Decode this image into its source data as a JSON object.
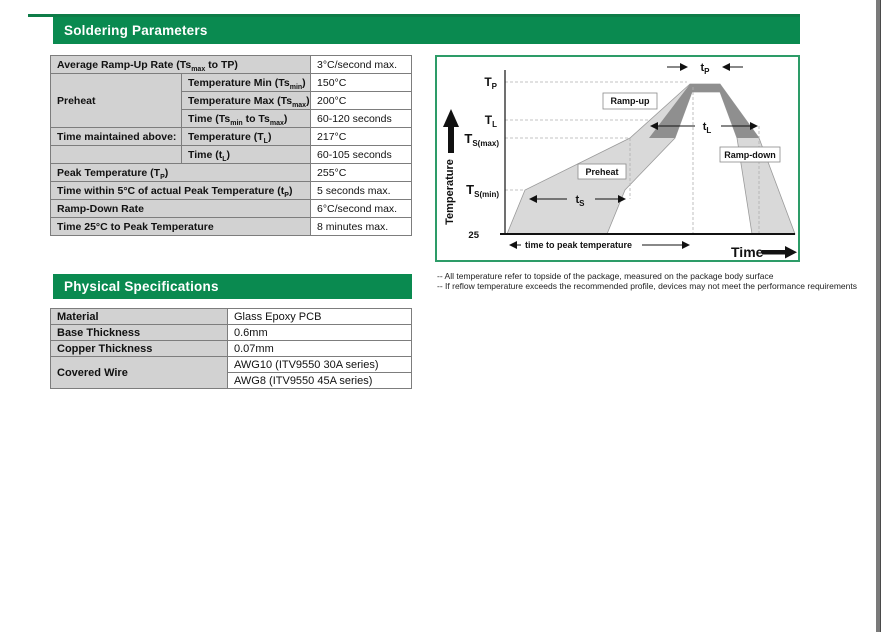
{
  "sections": {
    "soldering": {
      "title": "Soldering Parameters"
    },
    "physical": {
      "title": "Physical Specifications"
    }
  },
  "soldering_table": {
    "rows": [
      [
        {
          "parts": [
            [
              "Average Ramp-Up Rate (Ts",
              0
            ],
            [
              "max",
              1
            ],
            [
              " to TP)",
              0
            ]
          ],
          "colspan": 2
        },
        {
          "text": "3°C/second max.",
          "v": true
        }
      ],
      [
        {
          "text": "Preheat",
          "rowspan": 3
        },
        {
          "parts": [
            [
              "Temperature Min (Ts",
              0
            ],
            [
              "min",
              1
            ],
            [
              ")",
              0
            ]
          ]
        },
        {
          "text": "150°C",
          "v": true
        }
      ],
      [
        {
          "parts": [
            [
              "Temperature Max (Ts",
              0
            ],
            [
              "max",
              1
            ],
            [
              ")",
              0
            ]
          ]
        },
        {
          "text": "200°C",
          "v": true
        }
      ],
      [
        {
          "parts": [
            [
              "Time (Ts",
              0
            ],
            [
              "min",
              1
            ],
            [
              " to Ts",
              0
            ],
            [
              "max",
              1
            ],
            [
              ")",
              0
            ]
          ]
        },
        {
          "text": "60-120 seconds",
          "v": true
        }
      ],
      [
        {
          "text": "Time maintained above:"
        },
        {
          "parts": [
            [
              "Temperature (T",
              0
            ],
            [
              "L",
              1
            ],
            [
              ")",
              0
            ]
          ]
        },
        {
          "text": "217°C",
          "v": true
        }
      ],
      [
        {
          "text": ""
        },
        {
          "parts": [
            [
              "Time (t",
              0
            ],
            [
              "L",
              1
            ],
            [
              ")",
              0
            ]
          ]
        },
        {
          "text": "60-105 seconds",
          "v": true
        }
      ],
      [
        {
          "parts": [
            [
              "Peak Temperature (T",
              0
            ],
            [
              "P",
              1
            ],
            [
              ")",
              0
            ]
          ],
          "colspan": 2
        },
        {
          "text": "255°C",
          "v": true
        }
      ],
      [
        {
          "parts": [
            [
              "Time within 5°C of actual Peak Temperature (t",
              0
            ],
            [
              "P",
              1
            ],
            [
              ")",
              0
            ]
          ],
          "colspan": 2
        },
        {
          "text": "5 seconds max.",
          "v": true
        }
      ],
      [
        {
          "text": "Ramp-Down Rate",
          "colspan": 2
        },
        {
          "text": "6°C/second max.",
          "v": true
        }
      ],
      [
        {
          "text": "Time 25°C to Peak Temperature",
          "colspan": 2
        },
        {
          "text": "8 minutes max.",
          "v": true
        }
      ]
    ]
  },
  "physical_table": {
    "rows": [
      [
        {
          "text": "Material"
        },
        {
          "text": "Glass Epoxy PCB",
          "v": true
        }
      ],
      [
        {
          "text": "Base Thickness"
        },
        {
          "text": "0.6mm",
          "v": true
        }
      ],
      [
        {
          "text": "Copper Thickness"
        },
        {
          "text": "0.07mm",
          "v": true
        }
      ],
      [
        {
          "text": "Covered Wire",
          "rowspan": 2
        },
        {
          "text": "AWG10 (ITV9550 30A series)",
          "v": true
        }
      ],
      [
        {
          "text": "AWG8 (ITV9550 45A series)",
          "v": true
        }
      ]
    ]
  },
  "chart": {
    "y_tp": {
      "base": "T",
      "sub": "P"
    },
    "y_tl": {
      "base": "T",
      "sub": "L"
    },
    "y_tsmax": {
      "base": "T",
      "sub": "S(max)"
    },
    "y_tsmin": {
      "base": "T",
      "sub": "S(min)"
    },
    "y_25": "25",
    "temperature_label": "Temperature",
    "time_label": "Time",
    "ramp_up": "Ramp-up",
    "preheat": "Preheat",
    "ramp_down": "Ramp-down",
    "t_p": {
      "base": "t",
      "sub": "P"
    },
    "t_l": {
      "base": "t",
      "sub": "L"
    },
    "t_s": {
      "base": "t",
      "sub": "S"
    },
    "time_to_peak": "time to peak temperature"
  },
  "chart_data": {
    "type": "area",
    "title": "Reflow soldering temperature profile",
    "xlabel": "Time",
    "ylabel": "Temperature",
    "y_axis_levels": [
      "25",
      "TS(min)",
      "TS(max)",
      "TL",
      "TP"
    ],
    "phases": [
      "Preheat",
      "Ramp-up",
      "Ramp-down"
    ],
    "time_intervals": [
      "tS",
      "tL",
      "tP",
      "time to peak temperature"
    ],
    "legend_position": "none",
    "grid": "dashed reference lines at each temperature level",
    "bands": [
      "typical profile band (light gray)",
      "limit band near peak (dark gray)"
    ]
  },
  "footnotes": {
    "line1": "-- All temperature refer to topside of the package, measured on the package body surface",
    "line2": "-- If reflow temperature exceeds the recommended profile, devices may not meet the performance requirements"
  },
  "colors": {
    "header_green": "#0a8a50",
    "top_rule_green": "#0e7c48",
    "chart_border_green": "#2d9c68",
    "table_label_bg": "#d2d2d2",
    "band_light": "#d9d9d9",
    "band_dark": "#8f8f8f",
    "page_edge_gray": "#7a7a7a"
  }
}
